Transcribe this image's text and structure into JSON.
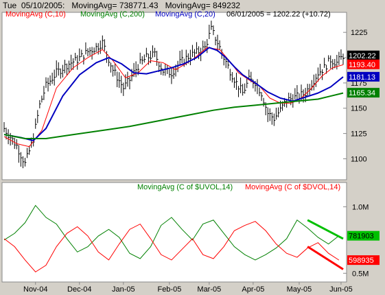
{
  "header": {
    "day": "Tue",
    "date": "05/10/2005:",
    "stat1": "MovingAvg= 738771.43",
    "stat2": "MovingAvg= 849232"
  },
  "top_legend": {
    "ma10": "MovingAvg (C,10)",
    "ma200": "MovingAvg (C,200)",
    "ma20": "MovingAvg (C,20)",
    "quote": "06/01/2005 = 1202.22 (+10.72)"
  },
  "bottom_legend": {
    "uvol": "MovingAvg (C of $UVOL,14)",
    "dvol": "MovingAvg (C of $DVOL,14)"
  },
  "colors": {
    "price": "#000000",
    "ma10": "#ff0000",
    "ma20": "#0000c0",
    "ma200": "#008000",
    "uvol": "#008000",
    "dvol": "#ff0000"
  },
  "chart_data": [
    {
      "type": "line",
      "panel": "price",
      "ylim": [
        1082,
        1238
      ],
      "yticks": [
        "1100",
        "1125",
        "1150",
        "1175",
        "1200",
        "1225"
      ],
      "ytick_values": [
        1100,
        1125,
        1150,
        1175,
        1200,
        1225
      ],
      "x_labels": [
        "Nov-04",
        "Dec-04",
        "Jan-05",
        "Feb-05",
        "Mar-05",
        "Apr-05",
        "May-05",
        "Jun-05"
      ],
      "x_range": [
        0,
        162
      ],
      "x_label_positions": [
        15,
        36,
        57,
        79,
        98,
        119,
        141,
        161
      ],
      "price_series": {
        "x": [
          0,
          6,
          10,
          14,
          17,
          20,
          25,
          30,
          35,
          40,
          44,
          47,
          52,
          57,
          60,
          64,
          68,
          72,
          76,
          80,
          84,
          88,
          92,
          96,
          99,
          102,
          105,
          108,
          111,
          114,
          117,
          120,
          123,
          126,
          129,
          132,
          135,
          138,
          141,
          144,
          147,
          150,
          153,
          156,
          159,
          162
        ],
        "values": [
          1130,
          1113,
          1095,
          1120,
          1153,
          1172,
          1185,
          1193,
          1198,
          1206,
          1210,
          1215,
          1188,
          1170,
          1178,
          1192,
          1200,
          1203,
          1187,
          1185,
          1195,
          1201,
          1205,
          1210,
          1228,
          1215,
          1200,
          1187,
          1175,
          1165,
          1178,
          1176,
          1165,
          1145,
          1140,
          1148,
          1158,
          1160,
          1162,
          1165,
          1175,
          1185,
          1190,
          1198,
          1195,
          1202
        ]
      },
      "series": [
        {
          "name": "MovingAvg (C,10)",
          "x": [
            0,
            6,
            12,
            18,
            25,
            33,
            40,
            47,
            52,
            58,
            64,
            70,
            76,
            82,
            90,
            97,
            103,
            108,
            112,
            117,
            122,
            127,
            132,
            137,
            142,
            147,
            152,
            157,
            162
          ],
          "values": [
            1122,
            1115,
            1112,
            1128,
            1170,
            1190,
            1200,
            1208,
            1197,
            1180,
            1185,
            1197,
            1195,
            1188,
            1198,
            1210,
            1208,
            1196,
            1185,
            1178,
            1172,
            1160,
            1155,
            1155,
            1160,
            1170,
            1182,
            1190,
            1193
          ]
        },
        {
          "name": "MovingAvg (C,20)",
          "x": [
            0,
            8,
            14,
            20,
            28,
            36,
            44,
            50,
            56,
            62,
            68,
            74,
            80,
            86,
            92,
            98,
            102,
            106,
            110,
            114,
            120,
            126,
            132,
            138,
            144,
            150,
            156,
            162
          ],
          "values": [
            1124,
            1121,
            1118,
            1130,
            1162,
            1183,
            1195,
            1200,
            1194,
            1185,
            1184,
            1187,
            1190,
            1194,
            1200,
            1210,
            1207,
            1200,
            1191,
            1183,
            1175,
            1166,
            1160,
            1157,
            1161,
            1165,
            1171,
            1181
          ]
        },
        {
          "name": "MovingAvg (C,200)",
          "x": [
            0,
            10,
            20,
            30,
            40,
            50,
            60,
            70,
            80,
            90,
            100,
            110,
            120,
            130,
            140,
            150,
            156,
            162
          ],
          "values": [
            1124,
            1120,
            1120,
            1123,
            1126,
            1129,
            1132,
            1136,
            1140,
            1144,
            1148,
            1151,
            1153,
            1155,
            1157,
            1159,
            1162,
            1165
          ]
        }
      ],
      "last_values": [
        {
          "label": "1202.22",
          "value": 1202.22,
          "bg": "#000000",
          "fg": "#ffffff"
        },
        {
          "label": "1193.40",
          "value": 1193.4,
          "bg": "#ff0000",
          "fg": "#ffffff"
        },
        {
          "label": "1181.13",
          "value": 1181.13,
          "bg": "#0000c0",
          "fg": "#ffffff"
        },
        {
          "label": "1165.34",
          "value": 1165.34,
          "bg": "#008000",
          "fg": "#ffffff"
        }
      ]
    },
    {
      "type": "line",
      "panel": "volume",
      "ylim": [
        450000,
        1100000
      ],
      "yticks": [
        "0.5M",
        "1.0M"
      ],
      "ytick_values": [
        500000,
        1000000
      ],
      "series": [
        {
          "name": "MovingAvg (C of $UVOL,14)",
          "x": [
            0,
            5,
            10,
            15,
            20,
            25,
            30,
            35,
            40,
            45,
            50,
            55,
            60,
            65,
            70,
            75,
            80,
            85,
            90,
            95,
            100,
            105,
            110,
            115,
            120,
            125,
            130,
            135,
            140,
            145,
            150,
            155,
            160
          ],
          "values": [
            750000,
            800000,
            880000,
            1010000,
            920000,
            870000,
            760000,
            660000,
            700000,
            780000,
            830000,
            770000,
            650000,
            610000,
            700000,
            860000,
            920000,
            830000,
            750000,
            870000,
            900000,
            800000,
            700000,
            640000,
            600000,
            640000,
            690000,
            760000,
            900000,
            840000,
            770000,
            720000,
            781903
          ]
        },
        {
          "name": "MovingAvg (C of $DVOL,14)",
          "x": [
            0,
            5,
            10,
            15,
            20,
            25,
            30,
            35,
            40,
            45,
            50,
            55,
            60,
            65,
            70,
            75,
            80,
            85,
            90,
            95,
            100,
            105,
            110,
            115,
            120,
            125,
            130,
            135,
            140,
            145,
            150,
            155,
            160
          ],
          "values": [
            760000,
            700000,
            600000,
            510000,
            560000,
            700000,
            800000,
            850000,
            780000,
            660000,
            600000,
            720000,
            830000,
            870000,
            760000,
            640000,
            600000,
            680000,
            760000,
            640000,
            610000,
            700000,
            820000,
            860000,
            890000,
            820000,
            720000,
            650000,
            620000,
            690000,
            730000,
            650000,
            598935
          ]
        }
      ],
      "trendlines": [
        {
          "series": "MovingAvg (C of $UVOL,14)",
          "x": [
            145,
            162
          ],
          "values": [
            900000,
            760000
          ],
          "color": "#00c000"
        },
        {
          "series": "MovingAvg (C of $DVOL,14)",
          "x": [
            145,
            162
          ],
          "values": [
            700000,
            530000
          ],
          "color": "#ff0000"
        }
      ],
      "last_values": [
        {
          "label": "781903",
          "value": 781903,
          "bg": "#00c000",
          "fg": "#000000"
        },
        {
          "label": "598935",
          "value": 598935,
          "bg": "#ff0000",
          "fg": "#ffffff"
        }
      ]
    }
  ]
}
